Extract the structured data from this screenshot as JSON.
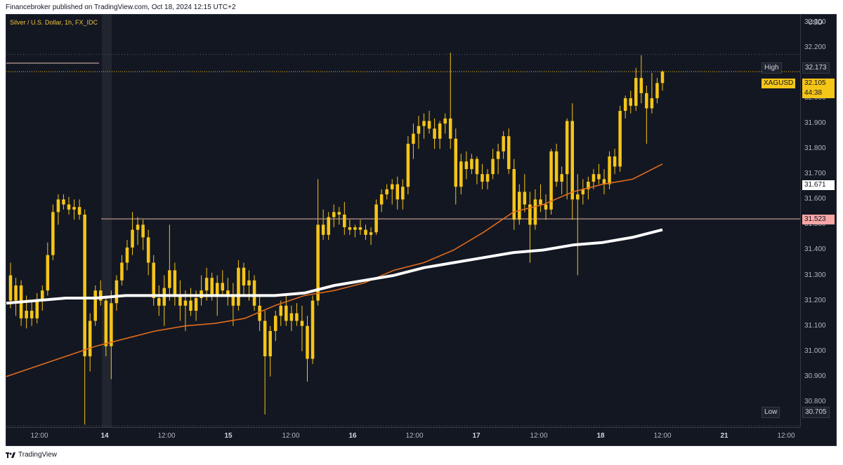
{
  "header": {
    "attribution": "Financebroker published on TradingView.com, Oct 18, 2024 12:15 UTC+2"
  },
  "chart": {
    "symbol_description": "Silver / U.S. Dollar, 1h, FX_IDC",
    "currency": "USD"
  },
  "price_axis": {
    "ticks": [
      "32.300",
      "32.200",
      "32.000",
      "31.900",
      "31.800",
      "31.700",
      "31.600",
      "31.500",
      "31.400",
      "31.300",
      "31.200",
      "31.100",
      "31.000",
      "30.900",
      "30.800"
    ],
    "labels": {
      "high_tag": "High",
      "high_value": "32.173",
      "symbol_tag": "XAGUSD",
      "last_price": "32.105",
      "countdown": "44:38",
      "ma_value": "31.671",
      "line_value": "31.523",
      "low_tag": "Low",
      "low_value": "30.705"
    }
  },
  "time_axis": {
    "ticks": [
      "12:00",
      "14",
      "12:00",
      "15",
      "12:00",
      "16",
      "12:00",
      "17",
      "12:00",
      "18",
      "12:00",
      "21",
      "12:00"
    ]
  },
  "footer": {
    "brand": "TradingView"
  },
  "colors": {
    "background": "#131722",
    "candle": "#f5c518",
    "ma_fast": "#e06c1c",
    "ma_slow": "#ffffff",
    "level_line": "#7f6a6a",
    "last_price_bg": "#f5c518",
    "line_value_bg": "#f7a6a6"
  },
  "chart_data": {
    "type": "candlestick",
    "symbol": "XAGUSD",
    "timeframe": "1h",
    "ylim": [
      30.7,
      32.33
    ],
    "high": 32.173,
    "low": 30.705,
    "last": 32.105,
    "ohlc": [
      [
        31.3,
        31.35,
        31.17,
        31.2
      ],
      [
        31.2,
        31.29,
        31.14,
        31.26
      ],
      [
        31.26,
        31.28,
        31.1,
        31.13
      ],
      [
        31.13,
        31.22,
        31.09,
        31.16
      ],
      [
        31.16,
        31.2,
        31.1,
        31.13
      ],
      [
        31.13,
        31.23,
        31.11,
        31.2
      ],
      [
        31.2,
        31.26,
        31.16,
        31.24
      ],
      [
        31.24,
        31.43,
        31.22,
        31.38
      ],
      [
        31.38,
        31.58,
        31.36,
        31.55
      ],
      [
        31.55,
        31.62,
        31.5,
        31.6
      ],
      [
        31.6,
        31.62,
        31.56,
        31.58
      ],
      [
        31.58,
        31.61,
        31.54,
        31.56
      ],
      [
        31.56,
        31.6,
        31.52,
        31.57
      ],
      [
        31.57,
        31.6,
        31.52,
        31.54
      ],
      [
        31.54,
        31.56,
        30.71,
        30.98
      ],
      [
        30.98,
        31.15,
        30.92,
        31.12
      ],
      [
        31.12,
        31.26,
        31.1,
        31.24
      ],
      [
        31.24,
        31.28,
        31.18,
        31.2
      ],
      [
        31.2,
        31.22,
        30.98,
        31.02
      ],
      [
        31.02,
        31.24,
        30.89,
        31.19
      ],
      [
        31.19,
        31.3,
        31.16,
        31.28
      ],
      [
        31.28,
        31.38,
        31.26,
        31.35
      ],
      [
        31.35,
        31.44,
        31.32,
        31.41
      ],
      [
        31.41,
        31.55,
        31.38,
        31.48
      ],
      [
        31.48,
        31.53,
        31.42,
        31.5
      ],
      [
        31.5,
        31.52,
        31.4,
        31.45
      ],
      [
        31.45,
        31.48,
        31.3,
        31.35
      ],
      [
        31.35,
        31.38,
        31.18,
        31.21
      ],
      [
        31.21,
        31.26,
        31.14,
        31.18
      ],
      [
        31.18,
        31.3,
        31.1,
        31.25
      ],
      [
        31.25,
        31.5,
        31.2,
        31.32
      ],
      [
        31.32,
        31.35,
        31.18,
        31.22
      ],
      [
        31.22,
        31.28,
        31.12,
        31.18
      ],
      [
        31.18,
        31.24,
        31.08,
        31.2
      ],
      [
        31.2,
        31.25,
        31.14,
        31.16
      ],
      [
        31.16,
        31.24,
        31.12,
        31.21
      ],
      [
        31.21,
        31.3,
        31.18,
        31.24
      ],
      [
        31.24,
        31.33,
        31.2,
        31.29
      ],
      [
        31.29,
        31.31,
        31.2,
        31.22
      ],
      [
        31.22,
        31.3,
        31.14,
        31.27
      ],
      [
        31.27,
        31.32,
        31.22,
        31.24
      ],
      [
        31.24,
        31.29,
        31.18,
        31.22
      ],
      [
        31.22,
        31.27,
        31.1,
        31.18
      ],
      [
        31.18,
        31.36,
        31.16,
        31.33
      ],
      [
        31.33,
        31.35,
        31.22,
        31.26
      ],
      [
        31.26,
        31.32,
        31.2,
        31.28
      ],
      [
        31.28,
        31.3,
        31.16,
        31.18
      ],
      [
        31.18,
        31.22,
        31.08,
        31.12
      ],
      [
        31.12,
        31.16,
        30.75,
        30.98
      ],
      [
        30.98,
        31.1,
        30.9,
        31.08
      ],
      [
        31.08,
        31.16,
        31.04,
        31.14
      ],
      [
        31.14,
        31.2,
        31.1,
        31.18
      ],
      [
        31.18,
        31.22,
        31.1,
        31.12
      ],
      [
        31.12,
        31.18,
        31.08,
        31.15
      ],
      [
        31.15,
        31.19,
        31.1,
        31.12
      ],
      [
        31.12,
        31.18,
        31.0,
        31.1
      ],
      [
        31.1,
        31.14,
        30.88,
        30.97
      ],
      [
        30.97,
        31.22,
        30.95,
        31.2
      ],
      [
        31.2,
        31.68,
        31.18,
        31.5
      ],
      [
        31.5,
        31.56,
        31.44,
        31.46
      ],
      [
        31.46,
        31.55,
        31.44,
        31.53
      ],
      [
        31.53,
        31.58,
        31.49,
        31.55
      ],
      [
        31.55,
        31.57,
        31.5,
        31.54
      ],
      [
        31.54,
        31.59,
        31.46,
        31.49
      ],
      [
        31.49,
        31.52,
        31.46,
        31.48
      ],
      [
        31.48,
        31.5,
        31.45,
        31.49
      ],
      [
        31.49,
        31.52,
        31.46,
        31.48
      ],
      [
        31.48,
        31.5,
        31.44,
        31.46
      ],
      [
        31.46,
        31.49,
        31.42,
        31.47
      ],
      [
        31.47,
        31.6,
        31.46,
        31.58
      ],
      [
        31.58,
        31.64,
        31.55,
        31.62
      ],
      [
        31.62,
        31.66,
        31.6,
        31.64
      ],
      [
        31.64,
        31.68,
        31.58,
        31.66
      ],
      [
        31.66,
        31.69,
        31.56,
        31.6
      ],
      [
        31.6,
        31.68,
        31.56,
        31.65
      ],
      [
        31.65,
        31.85,
        31.62,
        31.82
      ],
      [
        31.82,
        31.9,
        31.76,
        31.86
      ],
      [
        31.86,
        31.93,
        31.8,
        31.89
      ],
      [
        31.89,
        31.94,
        31.84,
        31.91
      ],
      [
        31.91,
        31.95,
        31.86,
        31.88
      ],
      [
        31.88,
        31.92,
        31.8,
        31.84
      ],
      [
        31.84,
        31.91,
        31.8,
        31.9
      ],
      [
        31.9,
        31.94,
        31.86,
        31.92
      ],
      [
        31.92,
        32.18,
        31.8,
        31.84
      ],
      [
        31.84,
        31.88,
        31.58,
        31.65
      ],
      [
        31.65,
        31.78,
        31.62,
        31.75
      ],
      [
        31.75,
        31.79,
        31.68,
        31.72
      ],
      [
        31.72,
        31.78,
        31.7,
        31.76
      ],
      [
        31.76,
        31.77,
        31.66,
        31.7
      ],
      [
        31.7,
        31.74,
        31.64,
        31.67
      ],
      [
        31.67,
        31.72,
        31.64,
        31.7
      ],
      [
        31.7,
        31.8,
        31.68,
        31.76
      ],
      [
        31.76,
        31.82,
        31.7,
        31.79
      ],
      [
        31.79,
        31.87,
        31.76,
        31.85
      ],
      [
        31.85,
        31.88,
        31.7,
        31.72
      ],
      [
        31.72,
        31.76,
        31.48,
        31.52
      ],
      [
        31.52,
        31.66,
        31.5,
        31.63
      ],
      [
        31.63,
        31.7,
        31.55,
        31.58
      ],
      [
        31.58,
        31.63,
        31.35,
        31.5
      ],
      [
        31.5,
        31.64,
        31.48,
        31.6
      ],
      [
        31.6,
        31.66,
        31.55,
        31.58
      ],
      [
        31.58,
        31.62,
        31.52,
        31.56
      ],
      [
        31.56,
        31.8,
        31.54,
        31.79
      ],
      [
        31.79,
        31.82,
        31.65,
        31.67
      ],
      [
        31.67,
        31.73,
        31.62,
        31.7
      ],
      [
        31.7,
        31.92,
        31.6,
        31.91
      ],
      [
        31.91,
        31.98,
        31.52,
        31.6
      ],
      [
        31.6,
        31.7,
        31.3,
        31.62
      ],
      [
        31.62,
        31.68,
        31.58,
        31.64
      ],
      [
        31.64,
        31.69,
        31.6,
        31.67
      ],
      [
        31.67,
        31.72,
        31.64,
        31.7
      ],
      [
        31.7,
        31.74,
        31.66,
        31.68
      ],
      [
        31.68,
        31.72,
        31.62,
        31.66
      ],
      [
        31.66,
        31.79,
        31.64,
        31.77
      ],
      [
        31.77,
        31.8,
        31.7,
        31.73
      ],
      [
        31.73,
        31.97,
        31.71,
        31.95
      ],
      [
        31.95,
        32.01,
        31.92,
        32.0
      ],
      [
        32.0,
        32.03,
        31.94,
        31.97
      ],
      [
        31.97,
        32.12,
        31.95,
        32.08
      ],
      [
        32.08,
        32.17,
        31.98,
        32.02
      ],
      [
        32.02,
        32.05,
        31.82,
        31.96
      ],
      [
        31.96,
        32.1,
        31.94,
        32.0
      ],
      [
        32.0,
        32.08,
        31.98,
        32.06
      ],
      [
        32.06,
        32.11,
        32.03,
        32.105
      ]
    ],
    "moving_averages": [
      {
        "color": "#e06c1c",
        "values": [
          30.9,
          30.94,
          30.98,
          31.02,
          31.05,
          31.08,
          31.1,
          31.11,
          31.13,
          31.18,
          31.22,
          31.24,
          31.27,
          31.32,
          31.35,
          31.4,
          31.47,
          31.55,
          31.58,
          31.63,
          31.66,
          31.68,
          31.74
        ]
      },
      {
        "color": "#ffffff",
        "values": [
          31.19,
          31.2,
          31.21,
          31.21,
          31.22,
          31.22,
          31.22,
          31.22,
          31.22,
          31.22,
          31.23,
          31.26,
          31.28,
          31.3,
          31.33,
          31.35,
          31.37,
          31.39,
          31.4,
          31.42,
          31.43,
          31.45,
          31.48
        ]
      }
    ],
    "horizontal_levels": [
      31.523,
      32.173,
      32.105,
      30.705
    ]
  }
}
